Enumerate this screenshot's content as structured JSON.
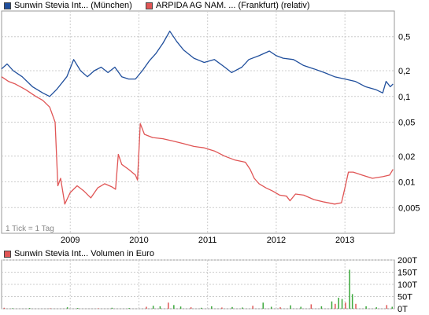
{
  "legend": {
    "series1": "Sunwin Stevia Int... (München)",
    "series2": "ARPIDA AG NAM.   ... (Frankfurt) (relativ)",
    "volume": "Sunwin Stevia Int... Volumen in Euro"
  },
  "tick_note": "1 Tick = 1 Tag",
  "colors": {
    "series1": "#1f4e9c",
    "series2": "#e05555",
    "volume_green": "#3aa83a",
    "volume_red": "#e05555",
    "grid": "#cccccc"
  },
  "chart_data": [
    {
      "type": "line",
      "scale": "log",
      "x_ticks": [
        "2009",
        "2010",
        "2011",
        "2012",
        "2013"
      ],
      "y_ticks": [
        "0,5",
        "0,2",
        "0,1",
        "0,05",
        "0,02",
        "0,01",
        "0,005"
      ],
      "y_tick_values": [
        0.5,
        0.2,
        0.1,
        0.05,
        0.02,
        0.01,
        0.005
      ],
      "ylim": [
        0.0025,
        1.0
      ],
      "xlim": [
        2008.0,
        2013.72
      ],
      "series": [
        {
          "name": "Sunwin Stevia Int... (München)",
          "points": [
            [
              2008.0,
              0.21
            ],
            [
              2008.08,
              0.24
            ],
            [
              2008.17,
              0.2
            ],
            [
              2008.3,
              0.17
            ],
            [
              2008.45,
              0.13
            ],
            [
              2008.6,
              0.11
            ],
            [
              2008.7,
              0.1
            ],
            [
              2008.8,
              0.12
            ],
            [
              2008.95,
              0.17
            ],
            [
              2009.05,
              0.27
            ],
            [
              2009.15,
              0.2
            ],
            [
              2009.25,
              0.17
            ],
            [
              2009.35,
              0.2
            ],
            [
              2009.45,
              0.22
            ],
            [
              2009.55,
              0.19
            ],
            [
              2009.65,
              0.22
            ],
            [
              2009.75,
              0.17
            ],
            [
              2009.85,
              0.16
            ],
            [
              2009.95,
              0.16
            ],
            [
              2010.05,
              0.2
            ],
            [
              2010.15,
              0.26
            ],
            [
              2010.25,
              0.32
            ],
            [
              2010.35,
              0.42
            ],
            [
              2010.45,
              0.58
            ],
            [
              2010.55,
              0.44
            ],
            [
              2010.65,
              0.35
            ],
            [
              2010.8,
              0.28
            ],
            [
              2010.95,
              0.25
            ],
            [
              2011.1,
              0.27
            ],
            [
              2011.25,
              0.22
            ],
            [
              2011.35,
              0.19
            ],
            [
              2011.5,
              0.22
            ],
            [
              2011.6,
              0.27
            ],
            [
              2011.75,
              0.3
            ],
            [
              2011.9,
              0.34
            ],
            [
              2012.0,
              0.3
            ],
            [
              2012.1,
              0.28
            ],
            [
              2012.25,
              0.27
            ],
            [
              2012.4,
              0.23
            ],
            [
              2012.55,
              0.21
            ],
            [
              2012.7,
              0.19
            ],
            [
              2012.85,
              0.17
            ],
            [
              2013.0,
              0.16
            ],
            [
              2013.15,
              0.15
            ],
            [
              2013.3,
              0.13
            ],
            [
              2013.45,
              0.12
            ],
            [
              2013.55,
              0.11
            ],
            [
              2013.6,
              0.15
            ],
            [
              2013.66,
              0.13
            ],
            [
              2013.7,
              0.14
            ]
          ]
        },
        {
          "name": "ARPIDA AG NAM.   ... (Frankfurt) (relativ)",
          "points": [
            [
              2008.0,
              0.17
            ],
            [
              2008.1,
              0.15
            ],
            [
              2008.2,
              0.14
            ],
            [
              2008.35,
              0.12
            ],
            [
              2008.5,
              0.1
            ],
            [
              2008.6,
              0.09
            ],
            [
              2008.7,
              0.075
            ],
            [
              2008.78,
              0.05
            ],
            [
              2008.82,
              0.009
            ],
            [
              2008.86,
              0.011
            ],
            [
              2008.92,
              0.0055
            ],
            [
              2009.0,
              0.0075
            ],
            [
              2009.1,
              0.009
            ],
            [
              2009.2,
              0.0078
            ],
            [
              2009.3,
              0.0065
            ],
            [
              2009.4,
              0.0085
            ],
            [
              2009.5,
              0.0095
            ],
            [
              2009.6,
              0.0088
            ],
            [
              2009.66,
              0.0082
            ],
            [
              2009.7,
              0.021
            ],
            [
              2009.75,
              0.016
            ],
            [
              2009.85,
              0.014
            ],
            [
              2009.95,
              0.012
            ],
            [
              2009.98,
              0.0105
            ],
            [
              2010.02,
              0.048
            ],
            [
              2010.08,
              0.036
            ],
            [
              2010.2,
              0.033
            ],
            [
              2010.35,
              0.032
            ],
            [
              2010.5,
              0.03
            ],
            [
              2010.65,
              0.028
            ],
            [
              2010.8,
              0.026
            ],
            [
              2010.95,
              0.025
            ],
            [
              2011.1,
              0.023
            ],
            [
              2011.25,
              0.02
            ],
            [
              2011.4,
              0.018
            ],
            [
              2011.55,
              0.017
            ],
            [
              2011.62,
              0.014
            ],
            [
              2011.68,
              0.011
            ],
            [
              2011.75,
              0.0095
            ],
            [
              2011.85,
              0.0085
            ],
            [
              2011.95,
              0.0078
            ],
            [
              2012.05,
              0.007
            ],
            [
              2012.15,
              0.0068
            ],
            [
              2012.2,
              0.006
            ],
            [
              2012.28,
              0.0072
            ],
            [
              2012.4,
              0.007
            ],
            [
              2012.55,
              0.0062
            ],
            [
              2012.7,
              0.0058
            ],
            [
              2012.85,
              0.0055
            ],
            [
              2012.95,
              0.0057
            ],
            [
              2013.0,
              0.0085
            ],
            [
              2013.05,
              0.013
            ],
            [
              2013.12,
              0.013
            ],
            [
              2013.25,
              0.012
            ],
            [
              2013.4,
              0.011
            ],
            [
              2013.55,
              0.0115
            ],
            [
              2013.65,
              0.012
            ],
            [
              2013.7,
              0.014
            ]
          ]
        }
      ]
    },
    {
      "type": "bar",
      "title": "Sunwin Stevia Int... Volumen in Euro",
      "y_ticks": [
        "200T",
        "150T",
        "100T",
        "50T",
        "0T"
      ],
      "y_tick_values": [
        200,
        150,
        100,
        50,
        0
      ],
      "ylim": [
        0,
        200
      ],
      "unit": "T",
      "bars": [
        [
          2008.03,
          4
        ],
        [
          2008.15,
          2
        ],
        [
          2008.4,
          3
        ],
        [
          2008.7,
          2
        ],
        [
          2008.95,
          6
        ],
        [
          2009.1,
          3
        ],
        [
          2009.4,
          2
        ],
        [
          2009.6,
          4
        ],
        [
          2009.85,
          3
        ],
        [
          2010.1,
          8
        ],
        [
          2010.2,
          12
        ],
        [
          2010.3,
          10
        ],
        [
          2010.42,
          25
        ],
        [
          2010.5,
          15
        ],
        [
          2010.6,
          9
        ],
        [
          2010.75,
          6
        ],
        [
          2010.9,
          4
        ],
        [
          2011.05,
          10
        ],
        [
          2011.2,
          5
        ],
        [
          2011.35,
          7
        ],
        [
          2011.5,
          5
        ],
        [
          2011.65,
          12
        ],
        [
          2011.8,
          25
        ],
        [
          2011.92,
          8
        ],
        [
          2012.05,
          6
        ],
        [
          2012.2,
          14
        ],
        [
          2012.35,
          8
        ],
        [
          2012.5,
          18
        ],
        [
          2012.65,
          10
        ],
        [
          2012.8,
          30
        ],
        [
          2012.85,
          20
        ],
        [
          2012.9,
          45
        ],
        [
          2012.95,
          40
        ],
        [
          2013.0,
          25
        ],
        [
          2013.06,
          160
        ],
        [
          2013.1,
          60
        ],
        [
          2013.15,
          20
        ],
        [
          2013.3,
          10
        ],
        [
          2013.45,
          6
        ],
        [
          2013.6,
          15
        ],
        [
          2013.68,
          8
        ]
      ]
    }
  ]
}
